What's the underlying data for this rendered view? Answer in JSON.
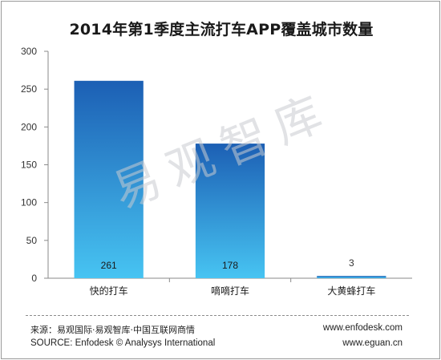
{
  "chart_data": {
    "type": "bar",
    "title": "2014年第1季度主流打车APP覆盖城市数量",
    "xlabel": "",
    "ylabel": "",
    "categories": [
      "快的打车",
      "嘀嘀打车",
      "大黄蜂打车"
    ],
    "values": [
      261,
      178,
      3
    ],
    "value_labels": [
      "261",
      "178",
      "3"
    ],
    "ylim": [
      0,
      300
    ],
    "yticks": [
      0,
      50,
      100,
      150,
      200,
      250,
      300
    ],
    "ytick_labels": [
      "0",
      "50",
      "100",
      "150",
      "200",
      "250",
      "300"
    ],
    "grid": false,
    "legend": "none",
    "colors": {
      "bar_top": "#1c5fb4",
      "bar_bottom": "#47c4f2",
      "axis": "#8a8a8a"
    }
  },
  "watermark": "易观智库",
  "footer": {
    "source_cn": "来源：易观国际·易观智库·中国互联网商情",
    "source_en": "SOURCE:  Enfodesk © Analysys International",
    "url_1": "www.enfodesk.com",
    "url_2": "www.eguan.cn"
  }
}
